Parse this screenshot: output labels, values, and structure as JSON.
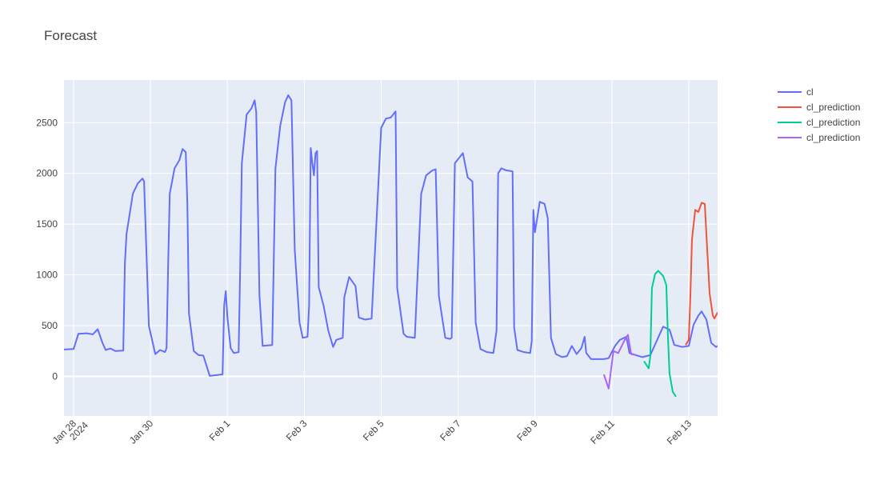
{
  "title": "Forecast",
  "chart_data": {
    "type": "line",
    "title": "Forecast",
    "xlabel": "",
    "ylabel": "",
    "x_range": [
      "2024-01-27 18:00",
      "2024-02-13 18:00"
    ],
    "ylim": [
      -390,
      2920
    ],
    "grid": true,
    "legend_position": "top-right",
    "x_ticks": [
      {
        "date": "2024-01-28",
        "label": "Jan 28",
        "sublabel": "2024"
      },
      {
        "date": "2024-01-30",
        "label": "Jan 30"
      },
      {
        "date": "2024-02-01",
        "label": "Feb 1"
      },
      {
        "date": "2024-02-03",
        "label": "Feb 3"
      },
      {
        "date": "2024-02-05",
        "label": "Feb 5"
      },
      {
        "date": "2024-02-07",
        "label": "Feb 7"
      },
      {
        "date": "2024-02-09",
        "label": "Feb 9"
      },
      {
        "date": "2024-02-11",
        "label": "Feb 11"
      },
      {
        "date": "2024-02-13",
        "label": "Feb 13"
      }
    ],
    "y_ticks": [
      0,
      500,
      1000,
      1500,
      2000,
      2500
    ],
    "series": [
      {
        "name": "cl",
        "color": "#636efa",
        "points": [
          [
            "2024-01-27 18:00",
            265
          ],
          [
            "2024-01-28 00:00",
            270
          ],
          [
            "2024-01-28 03:00",
            420
          ],
          [
            "2024-01-28 08:00",
            425
          ],
          [
            "2024-01-28 12:00",
            415
          ],
          [
            "2024-01-28 15:00",
            465
          ],
          [
            "2024-01-28 18:00",
            330
          ],
          [
            "2024-01-28 20:00",
            260
          ],
          [
            "2024-01-28 23:00",
            275
          ],
          [
            "2024-01-29 02:00",
            250
          ],
          [
            "2024-01-29 07:00",
            255
          ],
          [
            "2024-01-29 08:00",
            1110
          ],
          [
            "2024-01-29 09:00",
            1400
          ],
          [
            "2024-01-29 13:00",
            1800
          ],
          [
            "2024-01-29 16:00",
            1900
          ],
          [
            "2024-01-29 19:00",
            1950
          ],
          [
            "2024-01-29 20:00",
            1920
          ],
          [
            "2024-01-29 23:00",
            500
          ],
          [
            "2024-01-30 03:00",
            220
          ],
          [
            "2024-01-30 06:00",
            260
          ],
          [
            "2024-01-30 09:00",
            240
          ],
          [
            "2024-01-30 10:00",
            280
          ],
          [
            "2024-01-30 11:00",
            1100
          ],
          [
            "2024-01-30 12:00",
            1800
          ],
          [
            "2024-01-30 15:00",
            2050
          ],
          [
            "2024-01-30 18:00",
            2130
          ],
          [
            "2024-01-30 20:00",
            2240
          ],
          [
            "2024-01-30 22:00",
            2210
          ],
          [
            "2024-01-30 23:00",
            1700
          ],
          [
            "2024-01-31 00:00",
            620
          ],
          [
            "2024-01-31 03:00",
            250
          ],
          [
            "2024-01-31 06:00",
            210
          ],
          [
            "2024-01-31 09:00",
            205
          ],
          [
            "2024-01-31 13:00",
            5
          ],
          [
            "2024-01-31 21:00",
            20
          ],
          [
            "2024-01-31 22:00",
            700
          ],
          [
            "2024-01-31 23:00",
            840
          ],
          [
            "2024-02-01 00:00",
            580
          ],
          [
            "2024-02-01 02:00",
            280
          ],
          [
            "2024-02-01 04:00",
            230
          ],
          [
            "2024-02-01 07:00",
            240
          ],
          [
            "2024-02-01 08:00",
            1100
          ],
          [
            "2024-02-01 09:00",
            2100
          ],
          [
            "2024-02-01 12:00",
            2580
          ],
          [
            "2024-02-01 15:00",
            2640
          ],
          [
            "2024-02-01 17:00",
            2720
          ],
          [
            "2024-02-01 18:00",
            2600
          ],
          [
            "2024-02-01 20:00",
            800
          ],
          [
            "2024-02-01 22:00",
            300
          ],
          [
            "2024-02-02 04:00",
            310
          ],
          [
            "2024-02-02 06:00",
            2050
          ],
          [
            "2024-02-02 09:00",
            2470
          ],
          [
            "2024-02-02 12:00",
            2700
          ],
          [
            "2024-02-02 14:00",
            2770
          ],
          [
            "2024-02-02 16:00",
            2720
          ],
          [
            "2024-02-02 18:00",
            1250
          ],
          [
            "2024-02-02 21:00",
            530
          ],
          [
            "2024-02-02 23:00",
            380
          ],
          [
            "2024-02-03 02:00",
            390
          ],
          [
            "2024-02-03 03:00",
            700
          ],
          [
            "2024-02-03 04:00",
            2250
          ],
          [
            "2024-02-03 05:00",
            2100
          ],
          [
            "2024-02-03 06:00",
            1980
          ],
          [
            "2024-02-03 07:00",
            2200
          ],
          [
            "2024-02-03 08:00",
            2220
          ],
          [
            "2024-02-03 09:00",
            880
          ],
          [
            "2024-02-03 12:00",
            700
          ],
          [
            "2024-02-03 15:00",
            450
          ],
          [
            "2024-02-03 18:00",
            290
          ],
          [
            "2024-02-03 20:00",
            360
          ],
          [
            "2024-02-04 00:00",
            380
          ],
          [
            "2024-02-04 01:00",
            780
          ],
          [
            "2024-02-04 04:00",
            980
          ],
          [
            "2024-02-04 08:00",
            890
          ],
          [
            "2024-02-04 10:00",
            580
          ],
          [
            "2024-02-04 14:00",
            560
          ],
          [
            "2024-02-04 18:00",
            570
          ],
          [
            "2024-02-05 00:00",
            2450
          ],
          [
            "2024-02-05 03:00",
            2540
          ],
          [
            "2024-02-05 06:00",
            2550
          ],
          [
            "2024-02-05 09:00",
            2610
          ],
          [
            "2024-02-05 10:00",
            870
          ],
          [
            "2024-02-05 14:00",
            420
          ],
          [
            "2024-02-05 16:00",
            390
          ],
          [
            "2024-02-05 21:00",
            380
          ],
          [
            "2024-02-06 01:00",
            1800
          ],
          [
            "2024-02-06 04:00",
            1980
          ],
          [
            "2024-02-06 08:00",
            2030
          ],
          [
            "2024-02-06 10:00",
            2040
          ],
          [
            "2024-02-06 12:00",
            790
          ],
          [
            "2024-02-06 16:00",
            380
          ],
          [
            "2024-02-06 19:00",
            370
          ],
          [
            "2024-02-06 20:00",
            380
          ],
          [
            "2024-02-06 22:00",
            2100
          ],
          [
            "2024-02-07 03:00",
            2200
          ],
          [
            "2024-02-07 06:00",
            1960
          ],
          [
            "2024-02-07 09:00",
            1920
          ],
          [
            "2024-02-07 11:00",
            530
          ],
          [
            "2024-02-07 14:00",
            270
          ],
          [
            "2024-02-07 18:00",
            240
          ],
          [
            "2024-02-07 22:00",
            230
          ],
          [
            "2024-02-08 00:00",
            450
          ],
          [
            "2024-02-08 01:00",
            2000
          ],
          [
            "2024-02-08 03:00",
            2050
          ],
          [
            "2024-02-08 06:00",
            2030
          ],
          [
            "2024-02-08 10:00",
            2020
          ],
          [
            "2024-02-08 11:00",
            480
          ],
          [
            "2024-02-08 13:00",
            260
          ],
          [
            "2024-02-08 17:00",
            240
          ],
          [
            "2024-02-08 21:00",
            230
          ],
          [
            "2024-02-08 22:00",
            350
          ],
          [
            "2024-02-08 23:00",
            1640
          ],
          [
            "2024-02-09 00:00",
            1420
          ],
          [
            "2024-02-09 03:00",
            1720
          ],
          [
            "2024-02-09 06:00",
            1700
          ],
          [
            "2024-02-09 08:00",
            1560
          ],
          [
            "2024-02-09 10:00",
            380
          ],
          [
            "2024-02-09 13:00",
            220
          ],
          [
            "2024-02-09 17:00",
            190
          ],
          [
            "2024-02-09 20:00",
            200
          ],
          [
            "2024-02-09 23:00",
            300
          ],
          [
            "2024-02-10 02:00",
            220
          ],
          [
            "2024-02-10 05:00",
            280
          ],
          [
            "2024-02-10 07:00",
            390
          ],
          [
            "2024-02-10 08:00",
            230
          ],
          [
            "2024-02-10 11:00",
            170
          ],
          [
            "2024-02-10 15:00",
            170
          ],
          [
            "2024-02-10 19:00",
            170
          ],
          [
            "2024-02-10 22:00",
            180
          ],
          [
            "2024-02-11 02:00",
            300
          ],
          [
            "2024-02-11 05:00",
            360
          ],
          [
            "2024-02-11 09:00",
            390
          ],
          [
            "2024-02-11 11:00",
            230
          ],
          [
            "2024-02-11 15:00",
            210
          ],
          [
            "2024-02-11 19:00",
            190
          ],
          [
            "2024-02-12 00:00",
            210
          ],
          [
            "2024-02-12 04:00",
            350
          ],
          [
            "2024-02-12 08:00",
            490
          ],
          [
            "2024-02-12 12:00",
            460
          ],
          [
            "2024-02-12 15:00",
            310
          ],
          [
            "2024-02-12 20:00",
            290
          ],
          [
            "2024-02-13 00:00",
            300
          ],
          [
            "2024-02-13 03:00",
            510
          ],
          [
            "2024-02-13 06:00",
            600
          ],
          [
            "2024-02-13 08:00",
            640
          ],
          [
            "2024-02-13 11:00",
            560
          ],
          [
            "2024-02-13 14:00",
            330
          ],
          [
            "2024-02-13 17:00",
            290
          ],
          [
            "2024-02-13 18:00",
            300
          ]
        ]
      },
      {
        "name": "cl_prediction",
        "color": "#ef553b",
        "points": [
          [
            "2024-02-12 22:00",
            310
          ],
          [
            "2024-02-13 00:00",
            360
          ],
          [
            "2024-02-13 01:00",
            800
          ],
          [
            "2024-02-13 02:00",
            1350
          ],
          [
            "2024-02-13 04:00",
            1640
          ],
          [
            "2024-02-13 06:00",
            1620
          ],
          [
            "2024-02-13 08:00",
            1710
          ],
          [
            "2024-02-13 10:00",
            1700
          ],
          [
            "2024-02-13 11:00",
            1400
          ],
          [
            "2024-02-13 13:00",
            820
          ],
          [
            "2024-02-13 15:00",
            600
          ],
          [
            "2024-02-13 16:00",
            570
          ],
          [
            "2024-02-13 18:00",
            630
          ]
        ]
      },
      {
        "name": "cl_prediction",
        "color": "#00cc96",
        "points": [
          [
            "2024-02-11 20:00",
            150
          ],
          [
            "2024-02-11 23:00",
            80
          ],
          [
            "2024-02-12 00:00",
            200
          ],
          [
            "2024-02-12 01:00",
            870
          ],
          [
            "2024-02-12 03:00",
            1010
          ],
          [
            "2024-02-12 05:00",
            1040
          ],
          [
            "2024-02-12 08:00",
            990
          ],
          [
            "2024-02-12 10:00",
            900
          ],
          [
            "2024-02-12 11:00",
            400
          ],
          [
            "2024-02-12 12:00",
            30
          ],
          [
            "2024-02-12 14:00",
            -150
          ],
          [
            "2024-02-12 16:00",
            -200
          ]
        ]
      },
      {
        "name": "cl_prediction",
        "color": "#ab63fa",
        "points": [
          [
            "2024-02-10 19:00",
            20
          ],
          [
            "2024-02-10 22:00",
            -120
          ],
          [
            "2024-02-11 01:00",
            250
          ],
          [
            "2024-02-11 04:00",
            230
          ],
          [
            "2024-02-11 08:00",
            360
          ],
          [
            "2024-02-11 10:00",
            410
          ],
          [
            "2024-02-11 12:00",
            220
          ],
          [
            "2024-02-11 15:00",
            210
          ]
        ]
      }
    ]
  }
}
